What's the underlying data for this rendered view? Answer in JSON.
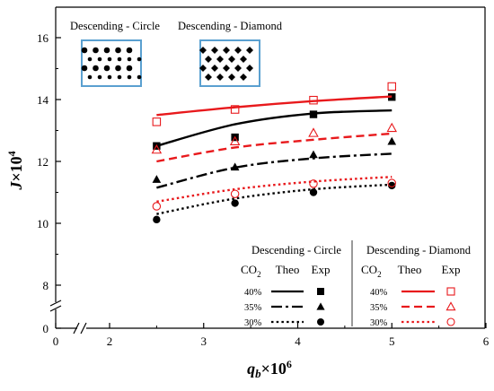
{
  "chart_data": {
    "type": "line",
    "xlabel": "q_b×10^6",
    "xlabel_parts": {
      "base": "q",
      "sub": "b",
      "times": "×10",
      "sup": "6"
    },
    "ylabel": "J×10^4",
    "ylabel_parts": {
      "base": "J",
      "times": "×10",
      "sup": "4"
    },
    "x_ticks": [
      "0",
      "2",
      "3",
      "4",
      "5",
      "6"
    ],
    "x_tick_values": [
      0,
      2,
      3,
      4,
      5,
      6
    ],
    "y_ticks": [
      "0",
      "8",
      "10",
      "12",
      "14",
      "16"
    ],
    "y_tick_values": [
      0,
      8,
      10,
      12,
      14,
      16
    ],
    "axis_break": true,
    "insets": [
      {
        "label": "Descending - Circle",
        "pattern": "circle"
      },
      {
        "label": "Descending - Diamond",
        "pattern": "diamond"
      }
    ],
    "series": [
      {
        "group": "circle",
        "co2": "40%",
        "color": "#000000",
        "dash": "solid",
        "theo_x": [
          2.5,
          3.333,
          4.167,
          5.0
        ],
        "theo_y": [
          12.5,
          13.2,
          13.55,
          13.65
        ],
        "exp_x": [
          2.5,
          3.333,
          4.167,
          5.0
        ],
        "exp_y": [
          12.5,
          12.78,
          13.52,
          14.08
        ],
        "marker": "square",
        "filled": true
      },
      {
        "group": "circle",
        "co2": "35%",
        "color": "#000000",
        "dash": "dashdot",
        "theo_x": [
          2.5,
          3.333,
          4.167,
          5.0
        ],
        "theo_y": [
          11.15,
          11.8,
          12.1,
          12.25
        ],
        "exp_x": [
          2.5,
          3.333,
          4.167,
          5.0
        ],
        "exp_y": [
          11.42,
          11.82,
          12.22,
          12.65
        ],
        "marker": "triangle",
        "filled": true
      },
      {
        "group": "circle",
        "co2": "30%",
        "color": "#000000",
        "dash": "dotted",
        "theo_x": [
          2.5,
          3.333,
          4.167,
          5.0
        ],
        "theo_y": [
          10.3,
          10.8,
          11.1,
          11.25
        ],
        "exp_x": [
          2.5,
          3.333,
          4.167,
          5.0
        ],
        "exp_y": [
          10.12,
          10.65,
          11.0,
          11.22
        ],
        "marker": "circle",
        "filled": true
      },
      {
        "group": "diamond",
        "co2": "40%",
        "color": "#e8191c",
        "dash": "solid",
        "theo_x": [
          2.5,
          3.333,
          4.167,
          5.0
        ],
        "theo_y": [
          13.5,
          13.75,
          13.95,
          14.1
        ],
        "exp_x": [
          2.5,
          3.333,
          4.167,
          5.0
        ],
        "exp_y": [
          13.28,
          13.68,
          13.98,
          14.42
        ],
        "marker": "square",
        "filled": false
      },
      {
        "group": "diamond",
        "co2": "35%",
        "color": "#e8191c",
        "dash": "dashed",
        "theo_x": [
          2.5,
          3.333,
          4.167,
          5.0
        ],
        "theo_y": [
          12.0,
          12.45,
          12.7,
          12.9
        ],
        "exp_x": [
          2.5,
          3.333,
          4.167,
          5.0
        ],
        "exp_y": [
          12.38,
          12.65,
          12.92,
          13.08
        ],
        "marker": "triangle",
        "filled": false
      },
      {
        "group": "diamond",
        "co2": "30%",
        "color": "#e8191c",
        "dash": "dotted",
        "theo_x": [
          2.5,
          3.333,
          4.167,
          5.0
        ],
        "theo_y": [
          10.7,
          11.1,
          11.35,
          11.5
        ],
        "exp_x": [
          2.5,
          3.333,
          4.167,
          5.0
        ],
        "exp_y": [
          10.55,
          10.95,
          11.28,
          11.3
        ],
        "marker": "circle",
        "filled": false
      }
    ],
    "legend": {
      "placement": "bottom-right",
      "groups": [
        {
          "key": "circle",
          "title": "Descending - Circle",
          "co2_head": "CO",
          "co2_sub": "2",
          "theo_head": "Theo",
          "exp_head": "Exp"
        },
        {
          "key": "diamond",
          "title": "Descending - Diamond",
          "co2_head": "CO",
          "co2_sub": "2",
          "theo_head": "Theo",
          "exp_head": "Exp"
        }
      ]
    }
  }
}
